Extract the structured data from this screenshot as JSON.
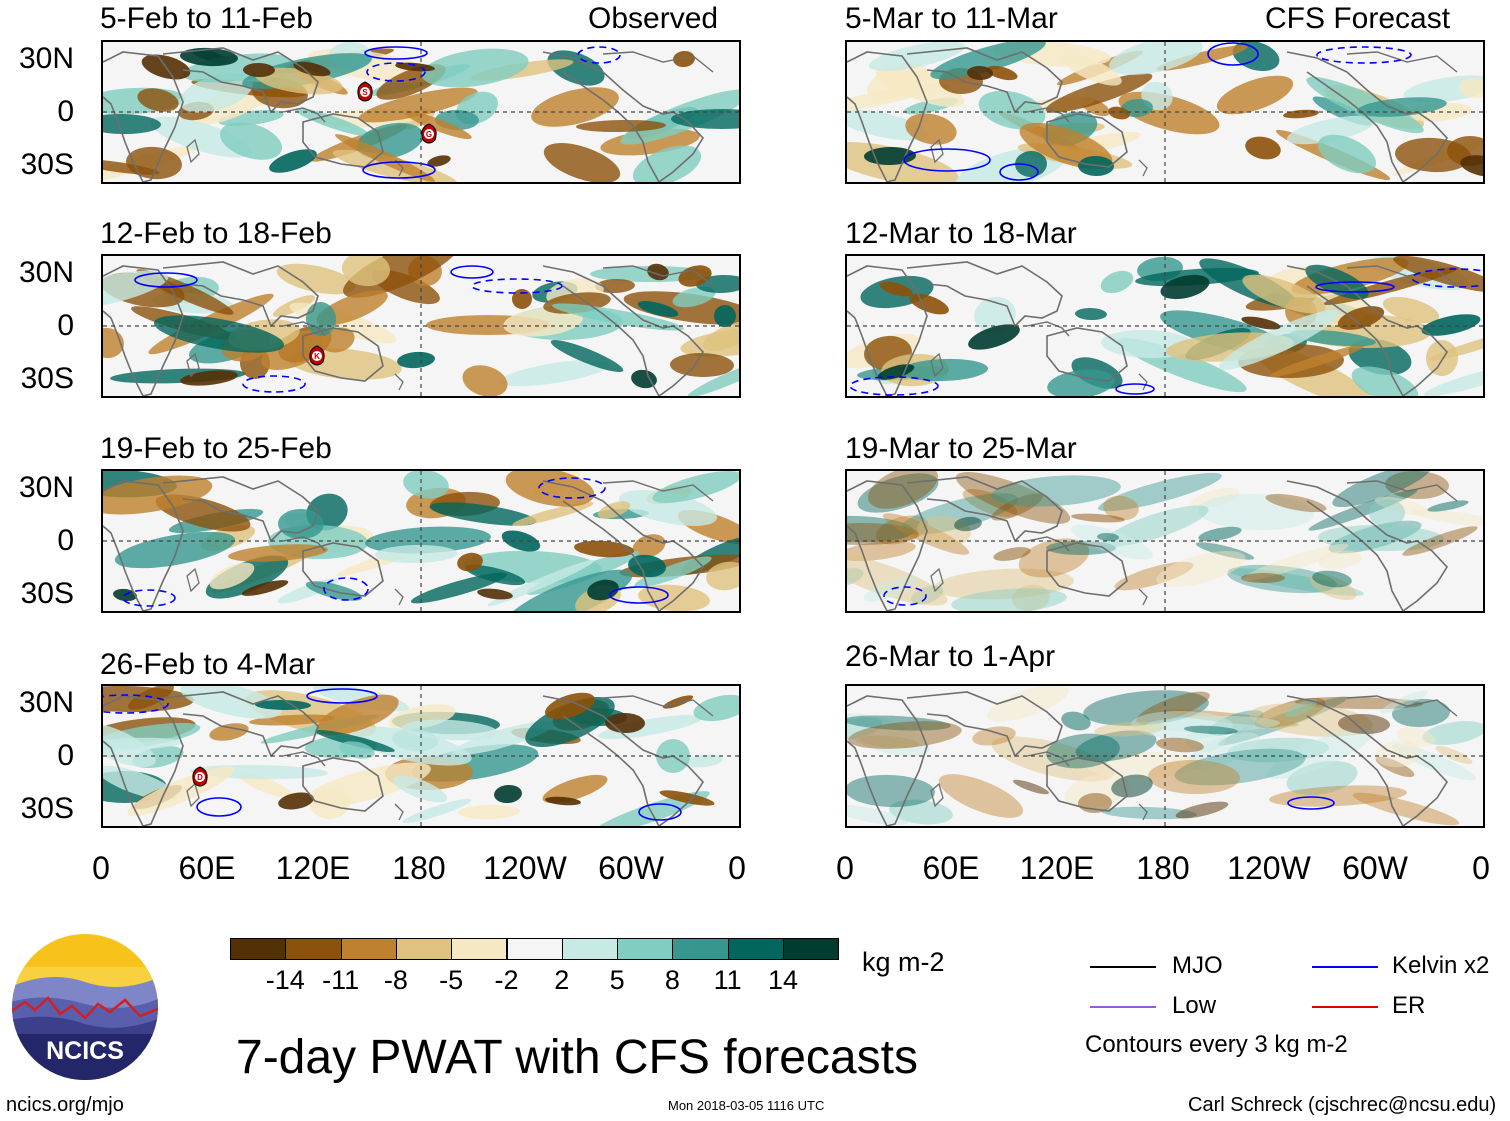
{
  "panels": {
    "observed": [
      {
        "title": "5-Feb to 11-Feb",
        "tag": "Observed"
      },
      {
        "title": "12-Feb to 18-Feb"
      },
      {
        "title": "19-Feb to 25-Feb"
      },
      {
        "title": "26-Feb to 4-Mar"
      }
    ],
    "forecast": [
      {
        "title": "5-Mar to 11-Mar",
        "tag": "CFS Forecast"
      },
      {
        "title": "12-Mar to 18-Mar"
      },
      {
        "title": "19-Mar to 25-Mar"
      },
      {
        "title": "26-Mar to 1-Apr"
      }
    ]
  },
  "axes": {
    "y": [
      "30N",
      "0",
      "30S"
    ],
    "x": [
      "0",
      "60E",
      "120E",
      "180",
      "120W",
      "60W",
      "0"
    ]
  },
  "storm_markers": [
    {
      "letter": "S"
    },
    {
      "letter": "G"
    },
    {
      "letter": "K"
    },
    {
      "letter": "D"
    }
  ],
  "colorbar": {
    "unit": "kg m-2",
    "labels": [
      "-14",
      "-11",
      "-8",
      "-5",
      "-2",
      "2",
      "5",
      "8",
      "11",
      "14"
    ],
    "colors": [
      "#543005",
      "#8c510a",
      "#bf812d",
      "#dfc27d",
      "#f6e8c3",
      "#f5f5f5",
      "#c7eae5",
      "#80cdc1",
      "#35978f",
      "#01665e",
      "#003c30"
    ]
  },
  "legend": {
    "items": [
      {
        "label": "MJO",
        "color": "#000000"
      },
      {
        "label": "Kelvin x2",
        "color": "#0000ff"
      },
      {
        "label": "Low",
        "color": "#9b59d6"
      },
      {
        "label": "ER",
        "color": "#e00000"
      }
    ],
    "note": "Contours every 3 kg m-2"
  },
  "main_title": "7-day PWAT with CFS forecasts",
  "logo_text": "NCICS",
  "footer": {
    "left": "ncics.org/mjo",
    "center": "Mon 2018-03-05 1116 UTC",
    "right": "Carl Schreck (cjschrec@ncsu.edu)"
  }
}
